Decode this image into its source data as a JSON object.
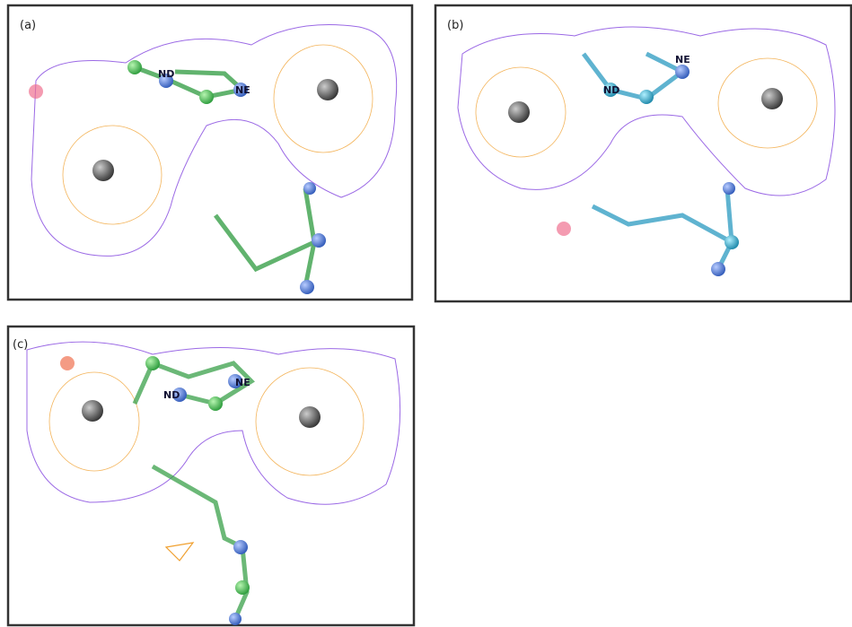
{
  "panels": [
    {
      "label": "(a)",
      "atom_labels": [
        "ND",
        "NE"
      ]
    },
    {
      "label": "(b)",
      "atom_labels": [
        "ND",
        "NE"
      ]
    },
    {
      "label": "(c)",
      "atom_labels": [
        "ND",
        "NE"
      ]
    }
  ]
}
